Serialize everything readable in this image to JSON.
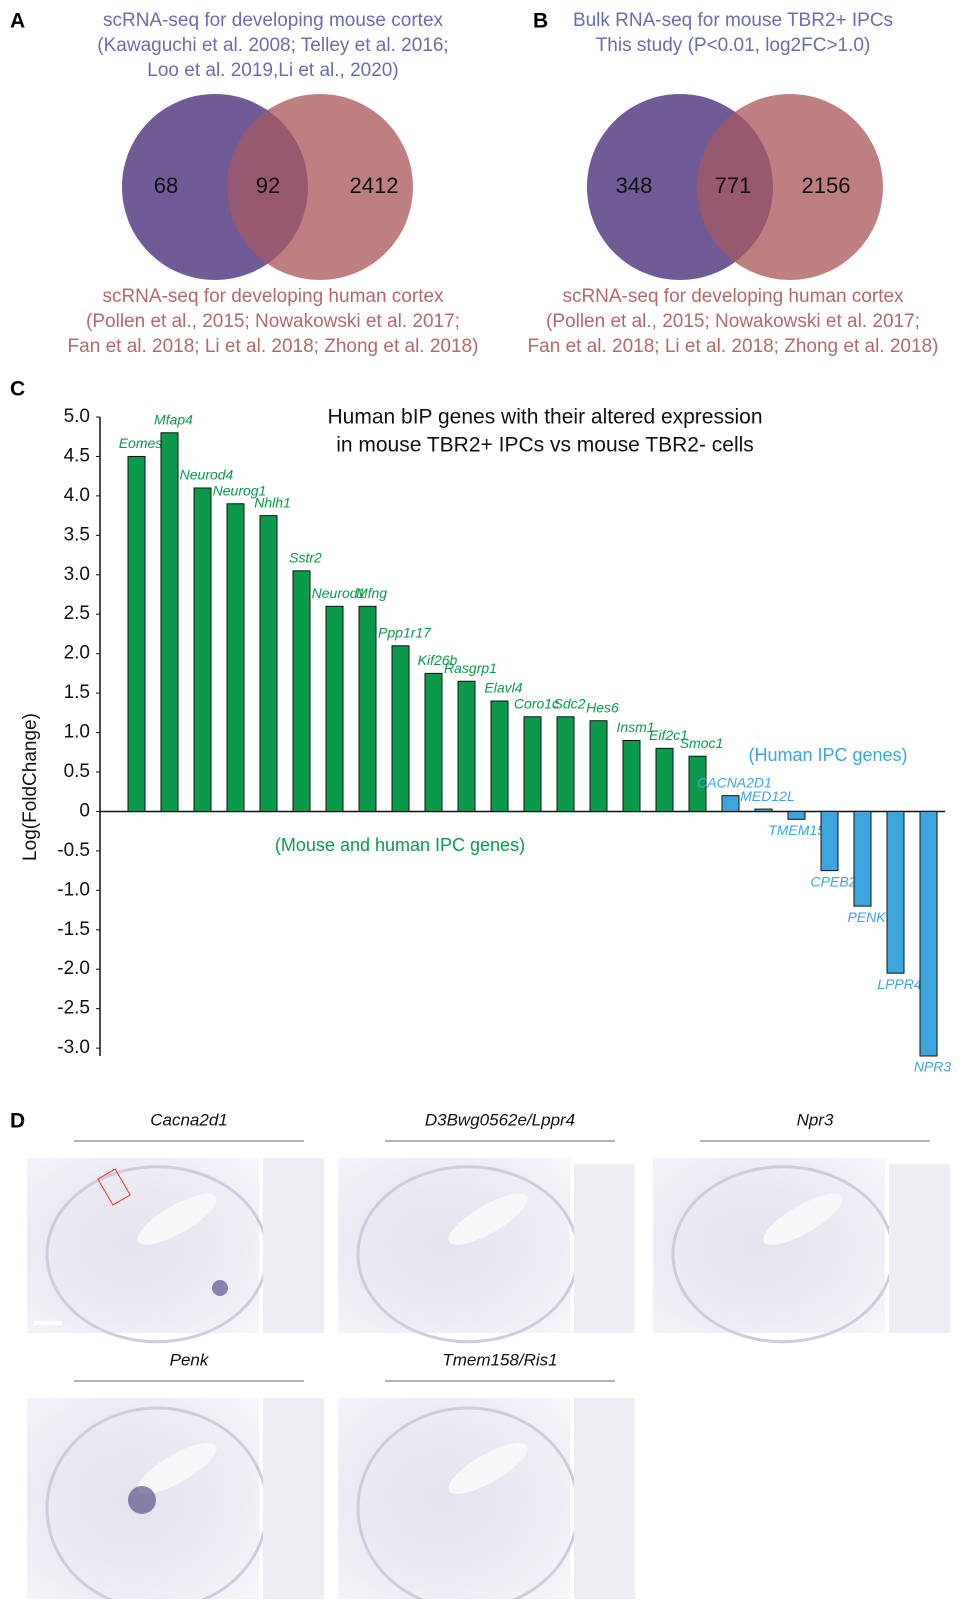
{
  "chart_data": [
    {
      "type": "venn",
      "panel": "A",
      "sets": [
        {
          "name": [
            "scRNA-seq for developing mouse cortex",
            "(Kawaguchi et al. 2008; Telley et al. 2016;",
            "Loo et al. 2019,Li et al., 2020)"
          ],
          "color": "#6a6cb0"
        },
        {
          "name": [
            "scRNA-seq for developing human cortex",
            "(Pollen et al., 2015; Nowakowski et al. 2017;",
            "Fan et al. 2018; Li et al. 2018; Zhong et al. 2018)"
          ],
          "color": "#b2696a"
        }
      ],
      "values": [
        68,
        92,
        2412
      ]
    },
    {
      "type": "venn",
      "panel": "B",
      "sets": [
        {
          "name": [
            "Bulk RNA-seq for mouse TBR2+ IPCs",
            "This study (P<0.01, log2FC>1.0)"
          ],
          "color": "#6a6cb0"
        },
        {
          "name": [
            "scRNA-seq for developing human cortex",
            "(Pollen et al., 2015; Nowakowski et al. 2017;",
            "Fan et al. 2018; Li et al. 2018; Zhong et al. 2018)"
          ],
          "color": "#b2696a"
        }
      ],
      "values": [
        348,
        771,
        2156
      ]
    },
    {
      "type": "bar",
      "panel": "C",
      "title": [
        "Human bIP genes with their altered expression",
        "in mouse TBR2+ IPCs vs mouse TBR2- cells"
      ],
      "y_label": "Log(FoldChange)",
      "categories": [
        "Eomes",
        "Mfap4",
        "Neurod4",
        "Neurog1",
        "Nhlh1",
        "Sstr2",
        "Neurod1",
        "Mfng",
        "Ppp1r17",
        "Kif26b",
        "Rasgrp1",
        "Elavl4",
        "Coro1c",
        "Sdc2",
        "Hes6",
        "Insm1",
        "Eif2c1",
        "Smoc1",
        "CACNA2D1",
        "MED12L",
        "TMEM158",
        "CPEB2",
        "PENK",
        "LPPR4",
        "NPR3"
      ],
      "series": [
        {
          "name": "(Mouse and human IPC genes)",
          "color": "#0b9a4c",
          "values": [
            4.5,
            4.8,
            4.1,
            3.9,
            3.75,
            3.05,
            2.6,
            2.6,
            2.1,
            1.75,
            1.65,
            1.4,
            1.2,
            1.2,
            1.15,
            0.9,
            0.8,
            0.7,
            null,
            null,
            null,
            null,
            null,
            null,
            null
          ]
        },
        {
          "name": "(Human IPC genes)",
          "color": "#3aa6dd",
          "values": [
            null,
            null,
            null,
            null,
            null,
            null,
            null,
            null,
            null,
            null,
            null,
            null,
            null,
            null,
            null,
            null,
            null,
            null,
            0.2,
            0.03,
            -0.1,
            -0.75,
            -1.2,
            -2.05,
            -3.1
          ]
        }
      ],
      "ylim": [
        -3.1,
        5.0
      ],
      "yticks": [
        {
          "value": 5,
          "label": "5.0"
        },
        4.5,
        {
          "value": 4,
          "label": "4.0"
        },
        3.5,
        {
          "value": 3,
          "label": "3.0"
        },
        2.5,
        {
          "value": 2,
          "label": "2.0"
        },
        1.5,
        {
          "value": 1,
          "label": "1.0"
        },
        0.5,
        0,
        -0.5,
        {
          "value": -1,
          "label": "-1.0"
        },
        -1.5,
        {
          "value": -2,
          "label": "-2.0"
        },
        -2.5,
        {
          "value": -3,
          "label": "-3.0"
        }
      ]
    }
  ],
  "panel_d": {
    "panel": "D",
    "images": [
      "Cacna2d1",
      "D3Bwg0562e/Lppr4",
      "Npr3",
      "Penk",
      "Tmem158/Ris1"
    ]
  }
}
